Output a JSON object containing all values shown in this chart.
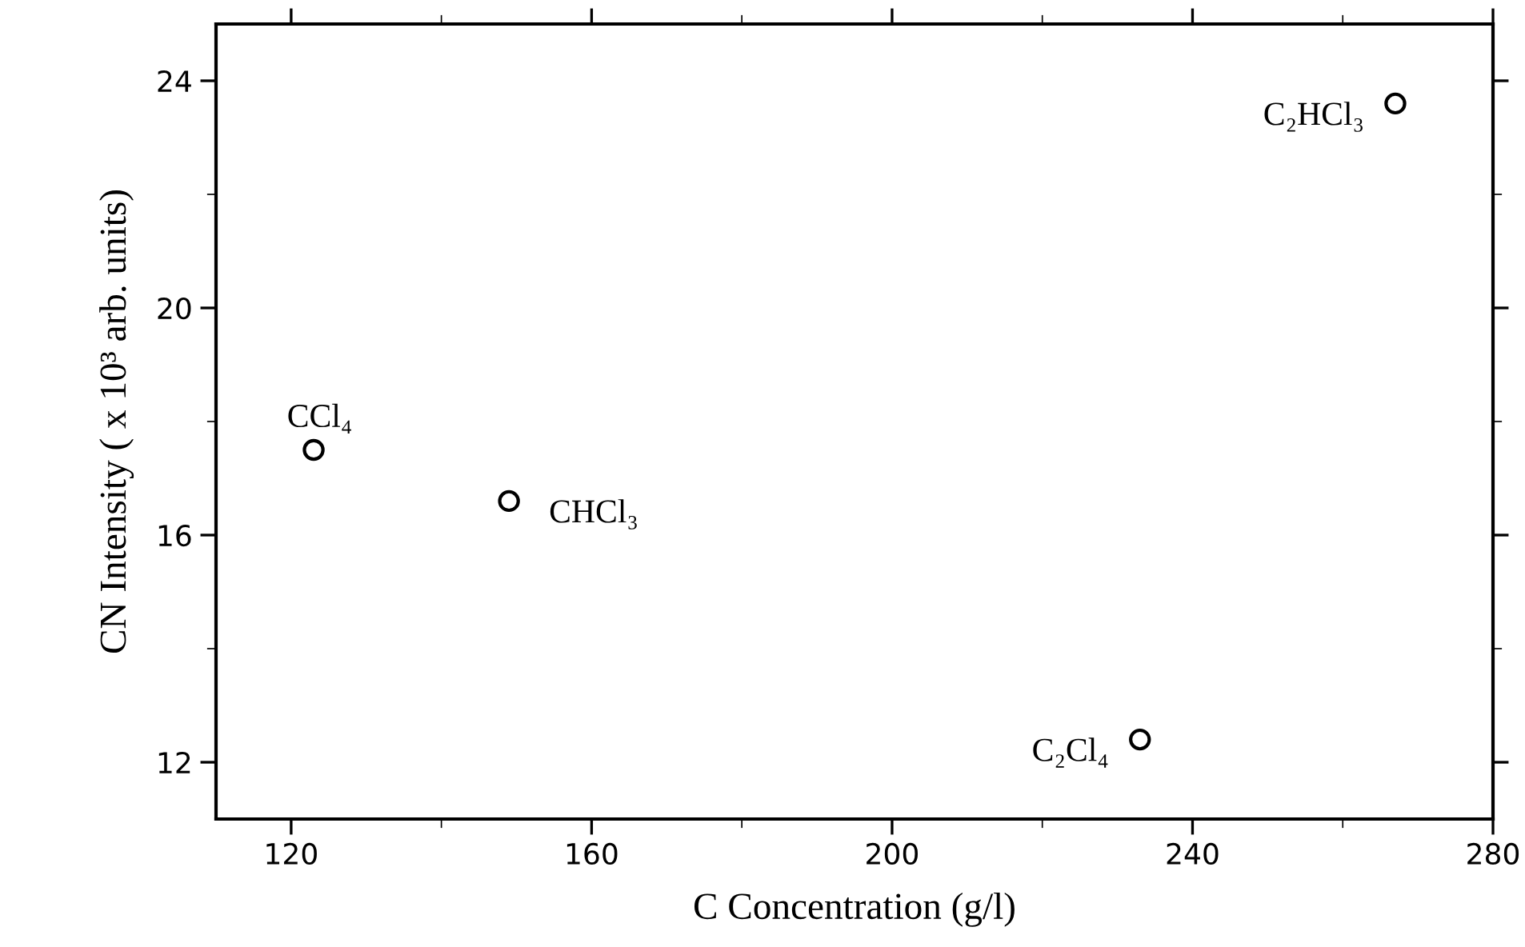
{
  "chart_data": {
    "type": "scatter",
    "xlabel": "C Concentration (g/l)",
    "ylabel": "CN Intensity ( x 10³ arb. units)",
    "x": [
      123,
      149,
      233,
      267
    ],
    "series": [
      {
        "color": "#000000",
        "values": [
          17.5,
          16.6,
          12.4,
          23.6
        ]
      }
    ],
    "marker": "circle",
    "grid": false,
    "legend": false,
    "xlim": [
      110,
      280
    ],
    "xticks": [
      120,
      160,
      200,
      240,
      280
    ],
    "ylim": [
      11,
      25
    ],
    "yticks": [
      12,
      16,
      20,
      24
    ],
    "annotations": [
      {
        "text": "CCl₄",
        "x": 123,
        "y": 17.5
      },
      {
        "text": "CHCl₃",
        "x": 149,
        "y": 16.6
      },
      {
        "text": "C₂Cl₄",
        "x": 233,
        "y": 12.4
      },
      {
        "text": "C₂HCl₃",
        "x": 267,
        "y": 23.6
      }
    ]
  }
}
